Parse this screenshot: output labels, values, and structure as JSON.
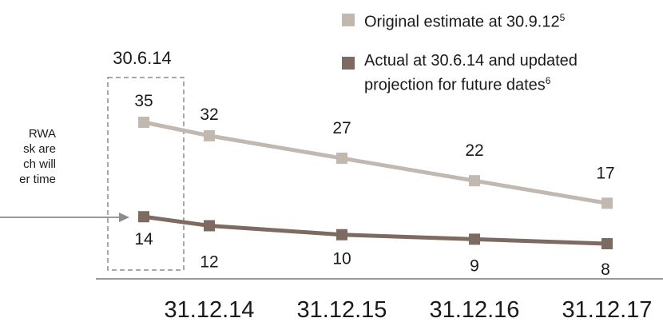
{
  "chart_data": {
    "type": "line",
    "categories": [
      "30.6.14",
      "31.12.14",
      "31.12.15",
      "31.12.16",
      "31.12.17"
    ],
    "highlight_label": "30.6.14",
    "x_tick_labels": [
      "31.12.14",
      "31.12.15",
      "31.12.16",
      "31.12.17"
    ],
    "x_tick_color": "#1a1a1a",
    "series": [
      {
        "name": "Original estimate at 30.9.12",
        "footnote": "5",
        "color": "#c1b8b0",
        "values": [
          35,
          32,
          27,
          22,
          17
        ],
        "labels": [
          "35",
          "32",
          "27",
          "22",
          "17"
        ],
        "label_position": "above"
      },
      {
        "name": "Actual at 30.6.14 and updated projection for future dates",
        "name_lines": [
          "Actual at 30.6.14 and updated",
          "projection for future dates"
        ],
        "footnote": "6",
        "color": "#7d6a60",
        "values": [
          14,
          12,
          10,
          9,
          8
        ],
        "labels": [
          "14",
          "12",
          "10",
          "9",
          "8"
        ],
        "label_position": "below"
      }
    ],
    "annotation": {
      "lines": [
        "RWA",
        "sk are",
        "ch will",
        "er time"
      ]
    },
    "grid": false,
    "legend_position": "top-right"
  }
}
